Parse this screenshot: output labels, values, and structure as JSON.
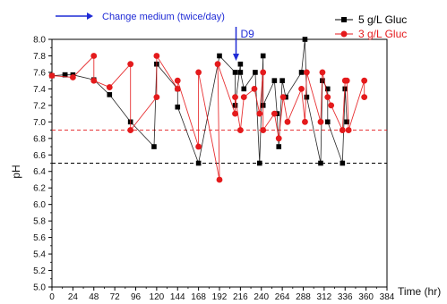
{
  "chart_data": {
    "type": "line",
    "xlabel": "Time (hr)",
    "ylabel": "pH",
    "xlim": [
      0,
      384
    ],
    "ylim": [
      5.0,
      8.0
    ],
    "xticks": [
      0,
      24,
      48,
      72,
      96,
      120,
      144,
      168,
      192,
      216,
      240,
      264,
      288,
      312,
      336,
      360,
      384
    ],
    "yticks": [
      "5.0",
      "5.2",
      "5.4",
      "5.6",
      "5.8",
      "6.0",
      "6.2",
      "6.4",
      "6.6",
      "6.8",
      "7.0",
      "7.2",
      "7.4",
      "7.6",
      "7.8",
      "8.0"
    ],
    "legend_position": "top-right",
    "series": [
      {
        "name": "5 g/L Gluc",
        "color": "#000000",
        "marker": "square",
        "points": [
          [
            0,
            7.56
          ],
          [
            15,
            7.57
          ],
          [
            15,
            7.57
          ],
          [
            24,
            7.57
          ],
          [
            48,
            7.51
          ],
          [
            66,
            7.33
          ],
          [
            90,
            7.0
          ],
          [
            117,
            6.7
          ],
          [
            120,
            7.7
          ],
          [
            144,
            7.4
          ],
          [
            144,
            7.18
          ],
          [
            168,
            6.5
          ],
          [
            192,
            7.8
          ],
          [
            210,
            7.6
          ],
          [
            210,
            7.2
          ],
          [
            216,
            7.7
          ],
          [
            216,
            7.6
          ],
          [
            220,
            7.4
          ],
          [
            233,
            7.6
          ],
          [
            238,
            6.5
          ],
          [
            242,
            7.8
          ],
          [
            242,
            7.2
          ],
          [
            255,
            7.5
          ],
          [
            258,
            7.1
          ],
          [
            260,
            6.7
          ],
          [
            264,
            7.5
          ],
          [
            268,
            7.3
          ],
          [
            286,
            7.6
          ],
          [
            290,
            8.0
          ],
          [
            292,
            7.3
          ],
          [
            308,
            6.5
          ],
          [
            310,
            7.5
          ],
          [
            316,
            7.4
          ],
          [
            316,
            7.0
          ],
          [
            333,
            6.5
          ],
          [
            336,
            7.4
          ],
          [
            338,
            7.0
          ]
        ]
      },
      {
        "name": "3 g/L Gluc",
        "color": "#e41a1c",
        "marker": "circle",
        "points": [
          [
            0,
            7.56
          ],
          [
            24,
            7.54
          ],
          [
            48,
            7.8
          ],
          [
            48,
            7.5
          ],
          [
            66,
            7.42
          ],
          [
            90,
            7.7
          ],
          [
            90,
            6.9
          ],
          [
            120,
            7.3
          ],
          [
            120,
            7.8
          ],
          [
            144,
            7.4
          ],
          [
            144,
            7.5
          ],
          [
            168,
            6.7
          ],
          [
            168,
            7.6
          ],
          [
            192,
            6.3
          ],
          [
            190,
            7.7
          ],
          [
            210,
            7.1
          ],
          [
            210,
            7.3
          ],
          [
            216,
            6.9
          ],
          [
            220,
            7.3
          ],
          [
            232,
            7.4
          ],
          [
            238,
            7.1
          ],
          [
            242,
            7.6
          ],
          [
            242,
            6.9
          ],
          [
            255,
            7.1
          ],
          [
            260,
            6.8
          ],
          [
            265,
            7.3
          ],
          [
            270,
            7.0
          ],
          [
            286,
            7.4
          ],
          [
            290,
            7.0
          ],
          [
            292,
            7.6
          ],
          [
            308,
            7.0
          ],
          [
            310,
            7.6
          ],
          [
            316,
            7.3
          ],
          [
            320,
            7.2
          ],
          [
            333,
            6.9
          ],
          [
            336,
            7.5
          ],
          [
            338,
            7.5
          ],
          [
            340,
            6.9
          ],
          [
            358,
            7.5
          ],
          [
            358,
            7.3
          ]
        ]
      }
    ],
    "reference_lines": [
      {
        "y": 6.9,
        "color": "#e41a1c",
        "style": "dashed"
      },
      {
        "y": 6.5,
        "color": "#000000",
        "style": "dashed"
      }
    ],
    "annotations": [
      {
        "text": "Change medium (twice/day)",
        "color": "#1f2bd6"
      },
      {
        "text": "D9",
        "color": "#1f2bd6",
        "x": 211
      }
    ]
  }
}
